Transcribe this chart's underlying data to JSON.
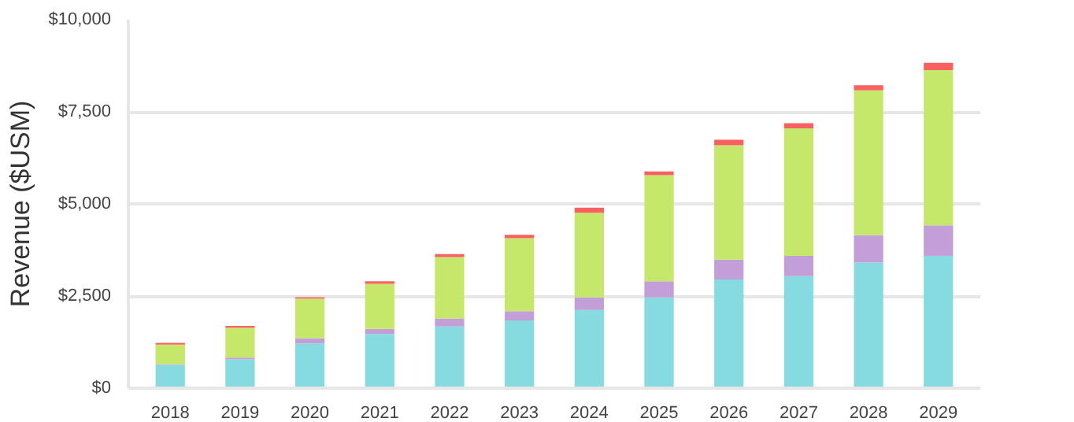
{
  "chart_data": {
    "type": "bar",
    "stacked": true,
    "ylabel": "Revenue ($USM)",
    "categories": [
      "2018",
      "2019",
      "2020",
      "2021",
      "2022",
      "2023",
      "2024",
      "2025",
      "2026",
      "2027",
      "2028",
      "2029"
    ],
    "series": [
      {
        "color": "#86dbe0",
        "values": [
          630,
          780,
          1210,
          1470,
          1670,
          1840,
          2120,
          2460,
          2950,
          3040,
          3410,
          3590
        ]
      },
      {
        "color": "#c39fd8",
        "values": [
          20,
          50,
          140,
          140,
          220,
          250,
          340,
          440,
          540,
          550,
          740,
          830
        ]
      },
      {
        "color": "#c5e76a",
        "values": [
          530,
          810,
          1080,
          1220,
          1670,
          1980,
          2300,
          2880,
          3100,
          3460,
          3930,
          4210
        ]
      },
      {
        "color": "#f96060",
        "values": [
          50,
          50,
          40,
          70,
          80,
          90,
          140,
          100,
          150,
          140,
          140,
          200
        ]
      }
    ],
    "ylim": [
      0,
      10000
    ],
    "yticks": [
      {
        "value": 0,
        "label": "$0"
      },
      {
        "value": 2500,
        "label": "$2,500"
      },
      {
        "value": 5000,
        "label": "$5,000"
      },
      {
        "value": 7500,
        "label": "$7,500"
      },
      {
        "value": 10000,
        "label": "$10,000"
      }
    ],
    "grid": "y"
  }
}
